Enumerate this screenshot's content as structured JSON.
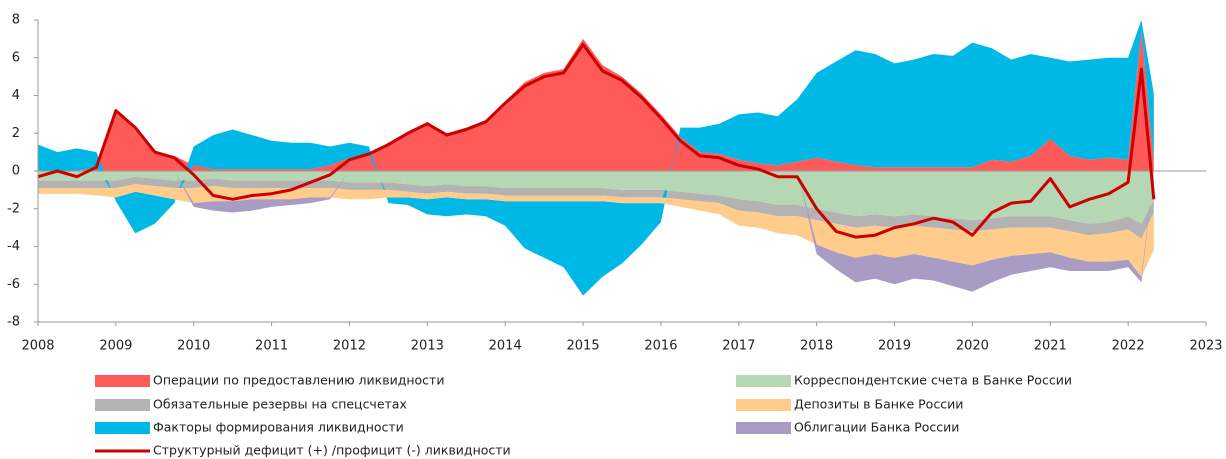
{
  "chart_data": {
    "type": "area",
    "x": [
      2008,
      2008.25,
      2008.5,
      2008.75,
      2009,
      2009.25,
      2009.5,
      2009.75,
      2010,
      2010.25,
      2010.5,
      2010.75,
      2011,
      2011.25,
      2011.5,
      2011.75,
      2012,
      2012.25,
      2012.5,
      2012.75,
      2013,
      2013.25,
      2013.5,
      2013.75,
      2014,
      2014.25,
      2014.5,
      2014.75,
      2015,
      2015.25,
      2015.5,
      2015.75,
      2016,
      2016.25,
      2016.5,
      2016.75,
      2017,
      2017.25,
      2017.5,
      2017.75,
      2018,
      2018.25,
      2018.5,
      2018.75,
      2019,
      2019.25,
      2019.5,
      2019.75,
      2020,
      2020.25,
      2020.5,
      2020.75,
      2021,
      2021.25,
      2021.5,
      2021.75,
      2022,
      2022.17,
      2022.33
    ],
    "series": [
      {
        "name": "Операции по предоставлению ликвидности",
        "color": "#ff5a5a",
        "values": [
          0,
          0,
          0,
          0.2,
          3.2,
          2.3,
          1.0,
          0.8,
          0.3,
          0.1,
          0.1,
          0.1,
          0.1,
          0.1,
          0.1,
          0.3,
          0.7,
          0.9,
          1.5,
          2.1,
          2.6,
          2.0,
          2.3,
          2.7,
          3.7,
          4.7,
          5.2,
          5.4,
          7.0,
          5.6,
          5.0,
          4.1,
          3.0,
          1.8,
          1.0,
          0.9,
          0.6,
          0.4,
          0.3,
          0.5,
          0.7,
          0.5,
          0.3,
          0.2,
          0.2,
          0.2,
          0.2,
          0.2,
          0.2,
          0.6,
          0.5,
          0.8,
          1.7,
          0.8,
          0.6,
          0.7,
          0.6,
          7.5,
          0.5
        ]
      },
      {
        "name": "Обязательные резервы на спецсчетах",
        "color": "#b3b3b3",
        "values": [
          -0.4,
          -0.4,
          -0.4,
          -0.4,
          -0.4,
          -0.4,
          -0.4,
          -0.4,
          -0.4,
          -0.4,
          -0.4,
          -0.4,
          -0.4,
          -0.4,
          -0.4,
          -0.4,
          -0.4,
          -0.4,
          -0.4,
          -0.4,
          -0.4,
          -0.4,
          -0.4,
          -0.4,
          -0.4,
          -0.4,
          -0.4,
          -0.4,
          -0.4,
          -0.4,
          -0.4,
          -0.4,
          -0.4,
          -0.4,
          -0.4,
          -0.4,
          -0.6,
          -0.6,
          -0.6,
          -0.6,
          -0.6,
          -0.6,
          -0.6,
          -0.6,
          -0.6,
          -0.6,
          -0.6,
          -0.6,
          -0.6,
          -0.6,
          -0.6,
          -0.6,
          -0.6,
          -0.6,
          -0.6,
          -0.6,
          -0.7,
          -0.8,
          -0.7
        ]
      },
      {
        "name": "Факторы формирования ликвидности",
        "color": "#00b8e6",
        "values": [
          1.4,
          1.0,
          1.2,
          0.8,
          -0.2,
          -2.2,
          -1.5,
          -0.2,
          1.0,
          1.8,
          2.1,
          1.8,
          1.5,
          1.4,
          1.4,
          1.0,
          0.8,
          0.4,
          -0.3,
          -0.4,
          -0.8,
          -1.0,
          -0.8,
          -0.9,
          -1.3,
          -2.5,
          -3.0,
          -3.5,
          -5.0,
          -4.0,
          -3.2,
          -2.2,
          -1.0,
          0.5,
          1.3,
          1.6,
          2.4,
          2.7,
          2.6,
          3.3,
          4.5,
          5.3,
          6.1,
          6.0,
          5.5,
          5.7,
          6.0,
          5.9,
          6.6,
          5.9,
          5.4,
          5.4,
          4.3,
          5.0,
          5.3,
          5.3,
          5.4,
          0.5,
          3.6
        ]
      },
      {
        "name": "Корреспондентские счета в Банке России",
        "color": "#b6d7b4",
        "values": [
          -0.5,
          -0.5,
          -0.5,
          -0.5,
          -0.5,
          -0.3,
          -0.4,
          -0.5,
          -0.5,
          -0.4,
          -0.5,
          -0.5,
          -0.5,
          -0.5,
          -0.5,
          -0.5,
          -0.6,
          -0.6,
          -0.6,
          -0.7,
          -0.8,
          -0.7,
          -0.8,
          -0.8,
          -0.9,
          -0.9,
          -0.9,
          -0.9,
          -0.9,
          -0.9,
          -1.0,
          -1.0,
          -1.0,
          -1.1,
          -1.2,
          -1.3,
          -1.5,
          -1.6,
          -1.8,
          -1.8,
          -2.0,
          -2.2,
          -2.4,
          -2.3,
          -2.4,
          -2.3,
          -2.4,
          -2.5,
          -2.6,
          -2.5,
          -2.4,
          -2.4,
          -2.4,
          -2.6,
          -2.8,
          -2.7,
          -2.4,
          -2.8,
          -1.5
        ]
      },
      {
        "name": "Депозиты в Банке России",
        "color": "#ffcc8c",
        "values": [
          -0.3,
          -0.3,
          -0.3,
          -0.4,
          -0.5,
          -0.4,
          -0.5,
          -0.6,
          -0.8,
          -0.8,
          -0.7,
          -0.6,
          -0.6,
          -0.6,
          -0.5,
          -0.5,
          -0.5,
          -0.5,
          -0.4,
          -0.3,
          -0.3,
          -0.3,
          -0.3,
          -0.3,
          -0.3,
          -0.3,
          -0.3,
          -0.3,
          -0.3,
          -0.3,
          -0.3,
          -0.3,
          -0.3,
          -0.4,
          -0.5,
          -0.6,
          -0.8,
          -0.8,
          -0.9,
          -1.0,
          -1.3,
          -1.5,
          -1.6,
          -1.5,
          -1.6,
          -1.5,
          -1.6,
          -1.7,
          -1.8,
          -1.6,
          -1.5,
          -1.4,
          -1.3,
          -1.4,
          -1.4,
          -1.5,
          -1.6,
          -2.0,
          -2.0
        ]
      },
      {
        "name": "Облигации Банка России",
        "color": "#a99cc4",
        "values": [
          0,
          0,
          0,
          0,
          0,
          0,
          0,
          0,
          -0.2,
          -0.5,
          -0.6,
          -0.6,
          -0.4,
          -0.3,
          -0.3,
          -0.1,
          0,
          0,
          0,
          0,
          0,
          0,
          0,
          0,
          0,
          0,
          0,
          0,
          0,
          0,
          0,
          0,
          0,
          0,
          0,
          0,
          0,
          0,
          0,
          0,
          -0.5,
          -0.9,
          -1.3,
          -1.3,
          -1.4,
          -1.3,
          -1.2,
          -1.3,
          -1.4,
          -1.2,
          -1.0,
          -0.9,
          -0.8,
          -0.7,
          -0.5,
          -0.5,
          -0.4,
          -0.3,
          0
        ]
      },
      {
        "name": "Структурный дефицит (+) /профицит (-) ликвидности",
        "color": "#cc0000",
        "type": "line",
        "values": [
          -0.3,
          0,
          -0.3,
          0.2,
          3.2,
          2.3,
          1.0,
          0.7,
          -0.2,
          -1.3,
          -1.5,
          -1.3,
          -1.2,
          -1.0,
          -0.6,
          -0.2,
          0.6,
          0.9,
          1.4,
          2.0,
          2.5,
          1.9,
          2.2,
          2.6,
          3.6,
          4.5,
          5.0,
          5.2,
          6.7,
          5.3,
          4.8,
          3.9,
          2.8,
          1.6,
          0.8,
          0.7,
          0.3,
          0.1,
          -0.3,
          -0.3,
          -2.0,
          -3.2,
          -3.5,
          -3.4,
          -3.0,
          -2.8,
          -2.5,
          -2.7,
          -3.4,
          -2.2,
          -1.7,
          -1.6,
          -0.4,
          -1.9,
          -1.5,
          -1.2,
          -0.6,
          5.4,
          -1.5
        ]
      }
    ],
    "xlim": [
      2008,
      2023
    ],
    "xticks": [
      2008,
      2009,
      2010,
      2011,
      2012,
      2013,
      2014,
      2015,
      2016,
      2017,
      2018,
      2019,
      2020,
      2021,
      2022,
      2023
    ],
    "ylim": [
      -8,
      8
    ],
    "yticks": [
      -8,
      -6,
      -4,
      -2,
      0,
      2,
      4,
      6,
      8
    ],
    "grid": false
  }
}
